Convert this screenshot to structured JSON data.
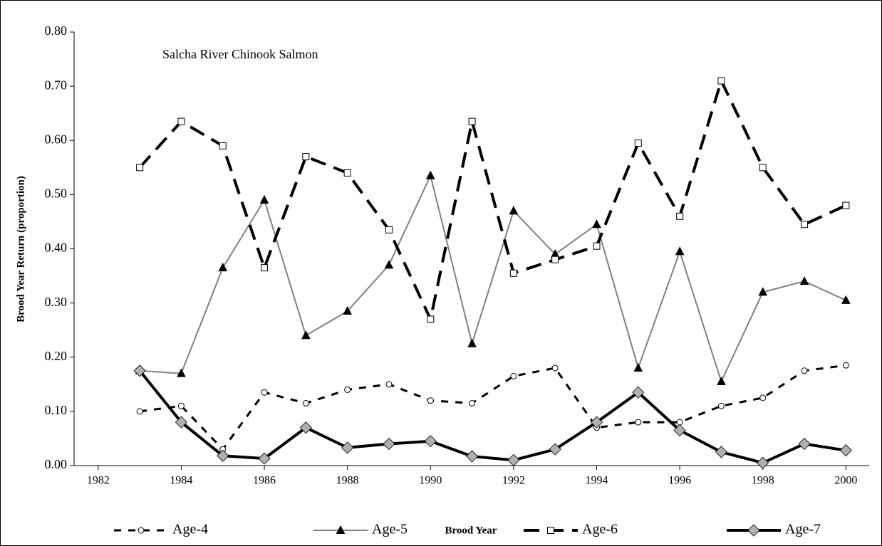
{
  "chart_data": {
    "type": "line",
    "title": "Salcha River Chinook Salmon",
    "xlabel": "Brood Year",
    "ylabel": "Brood Year Return (proportion)",
    "x": [
      1983,
      1984,
      1985,
      1986,
      1987,
      1988,
      1989,
      1990,
      1991,
      1992,
      1993,
      1994,
      1995,
      1996,
      1997,
      1998,
      1999,
      2000
    ],
    "xlim": [
      1981.42,
      2000.56
    ],
    "xticks": [
      1982,
      1984,
      1986,
      1988,
      1990,
      1992,
      1994,
      1996,
      1998,
      2000
    ],
    "ylim": [
      0,
      0.8
    ],
    "yticks": [
      {
        "value": 0,
        "label": "0.00"
      },
      {
        "value": 0.1,
        "label": "0.10"
      },
      {
        "value": 0.2,
        "label": "0.20"
      },
      {
        "value": 0.3,
        "label": "0.30"
      },
      {
        "value": 0.4,
        "label": "0.40"
      },
      {
        "value": 0.5,
        "label": "0.50"
      },
      {
        "value": 0.6,
        "label": "0.60"
      },
      {
        "value": 0.7,
        "label": "0.70"
      },
      {
        "value": 0.8,
        "label": "0.80"
      }
    ],
    "legend": "bottom",
    "series": [
      {
        "name": "Age-4",
        "color": "#000000",
        "marker": "circle",
        "marker_fill": "#ffffff",
        "dashed": true,
        "line_width": 3,
        "values": [
          0.1,
          0.11,
          0.03,
          0.135,
          0.115,
          0.14,
          0.15,
          0.12,
          0.115,
          0.165,
          0.18,
          0.07,
          0.08,
          0.08,
          0.11,
          0.125,
          0.175,
          0.185
        ]
      },
      {
        "name": "Age-5",
        "color": "#808080",
        "marker": "triangle",
        "marker_fill": "#000000",
        "dashed": false,
        "line_width": 2,
        "values": [
          0.175,
          0.17,
          0.365,
          0.49,
          0.24,
          0.285,
          0.37,
          0.535,
          0.225,
          0.47,
          0.39,
          0.445,
          0.18,
          0.395,
          0.155,
          0.32,
          0.34,
          0.305
        ]
      },
      {
        "name": "Age-6",
        "color": "#000000",
        "marker": "square",
        "marker_fill": "#ffffff",
        "dashed": true,
        "line_width": 4,
        "values": [
          0.55,
          0.635,
          0.59,
          0.365,
          0.57,
          0.54,
          0.435,
          0.27,
          0.635,
          0.355,
          0.38,
          0.405,
          0.595,
          0.46,
          0.71,
          0.55,
          0.445,
          0.48
        ]
      },
      {
        "name": "Age-7",
        "color": "#000000",
        "marker": "diamond",
        "marker_fill": "#b0b0b0",
        "dashed": false,
        "line_width": 4,
        "values": [
          0.175,
          0.08,
          0.018,
          0.013,
          0.07,
          0.033,
          0.04,
          0.045,
          0.017,
          0.01,
          0.03,
          0.08,
          0.135,
          0.065,
          0.025,
          0.005,
          0.04,
          0.028
        ]
      }
    ]
  }
}
